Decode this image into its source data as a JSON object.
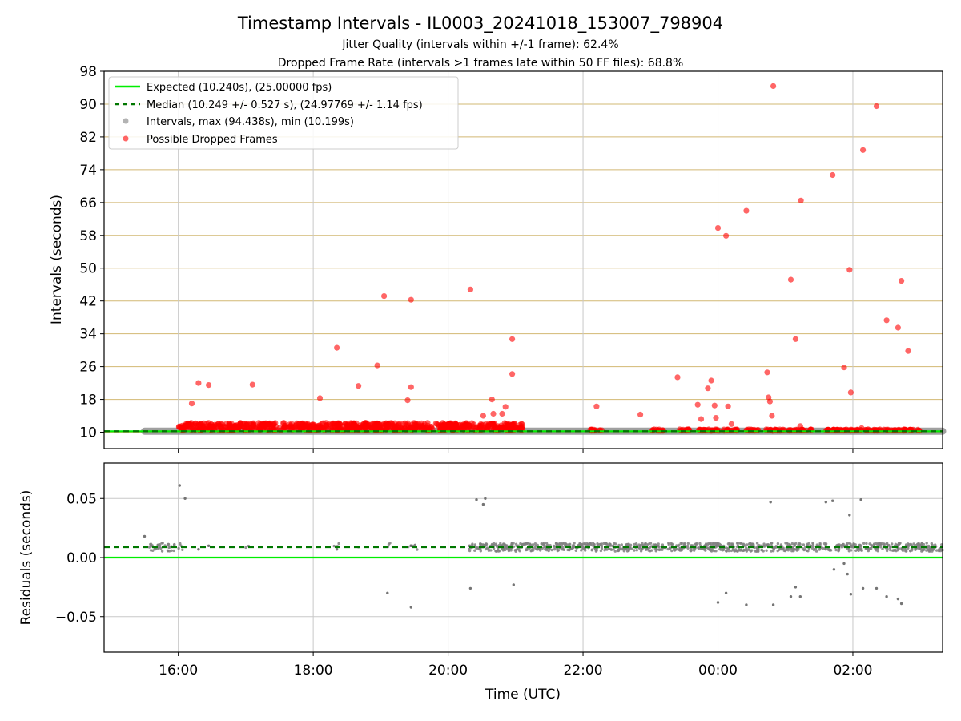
{
  "title": "Timestamp Intervals - IL0003_20241018_153007_798904",
  "subtitle_1": "Jitter Quality (intervals within +/-1 frame): 62.4%",
  "subtitle_2": "Dropped Frame Rate (intervals >1 frames late within 50 FF files): 68.8%",
  "colors": {
    "expected": "#00ee00",
    "median": "#007700",
    "intervals": "#808080",
    "dropped": "#ff0000",
    "hgrid_top": "#d2b873",
    "grid": "#c8c8c8"
  },
  "chart_data": [
    {
      "type": "scatter",
      "ylabel": "Intervals (seconds)",
      "ylim": [
        6,
        98
      ],
      "y_ticks": [
        "10",
        "18",
        "26",
        "34",
        "42",
        "50",
        "58",
        "66",
        "74",
        "82",
        "90",
        "98"
      ],
      "xlim_hours": [
        14.9,
        27.33
      ],
      "x_ticks": [
        "16:00",
        "18:00",
        "20:00",
        "22:00",
        "00:00",
        "02:00"
      ],
      "grid": true,
      "legend_position": "top-left",
      "legend": [
        "Expected (10.240s), (25.00000 fps)",
        "Median (10.249 +/- 0.527 s), (24.97769 +/- 1.14 fps)",
        "Intervals, max (94.438s), min (10.199s)",
        "Possible Dropped Frames"
      ],
      "expected": 10.24,
      "median": 10.249,
      "intervals_range_hours": [
        15.5,
        27.33
      ],
      "dropped_band": {
        "y": 10.8,
        "segments": [
          [
            16.0,
            20.4
          ],
          [
            20.4,
            21.1
          ],
          [
            22.1,
            22.3
          ],
          [
            23.0,
            23.2
          ],
          [
            23.4,
            23.6
          ],
          [
            23.7,
            24.3
          ],
          [
            24.4,
            24.6
          ],
          [
            24.7,
            25.0
          ],
          [
            25.05,
            25.4
          ],
          [
            25.6,
            27.0
          ]
        ]
      },
      "dropped_outliers": [
        [
          16.2,
          17
        ],
        [
          16.3,
          22
        ],
        [
          16.45,
          21.5
        ],
        [
          17.1,
          21.6
        ],
        [
          18.1,
          18.3
        ],
        [
          18.35,
          30.6
        ],
        [
          18.67,
          21.3
        ],
        [
          19.05,
          43.2
        ],
        [
          18.95,
          26.3
        ],
        [
          19.4,
          17.8
        ],
        [
          19.45,
          42.3
        ],
        [
          19.45,
          21
        ],
        [
          20.33,
          44.8
        ],
        [
          20.52,
          14
        ],
        [
          20.65,
          18
        ],
        [
          20.67,
          14.5
        ],
        [
          20.8,
          14.5
        ],
        [
          20.85,
          16.2
        ],
        [
          20.87,
          12
        ],
        [
          20.95,
          32.7
        ],
        [
          20.95,
          24.2
        ],
        [
          22.2,
          16.3
        ],
        [
          22.85,
          14.3
        ],
        [
          23.4,
          23.4
        ],
        [
          23.7,
          16.7
        ],
        [
          23.75,
          13.2
        ],
        [
          23.85,
          20.7
        ],
        [
          23.9,
          22.6
        ],
        [
          23.95,
          16.5
        ],
        [
          23.97,
          13.5
        ],
        [
          24.15,
          16.3
        ],
        [
          24.2,
          12
        ],
        [
          24.0,
          59.8
        ],
        [
          24.12,
          57.9
        ],
        [
          24.42,
          64
        ],
        [
          24.73,
          24.6
        ],
        [
          24.75,
          18.5
        ],
        [
          24.77,
          17.5
        ],
        [
          24.8,
          14
        ],
        [
          24.82,
          94.4
        ],
        [
          25.08,
          47.2
        ],
        [
          25.15,
          32.7
        ],
        [
          25.22,
          11.5
        ],
        [
          25.23,
          66.5
        ],
        [
          25.7,
          72.7
        ],
        [
          25.87,
          25.8
        ],
        [
          25.95,
          49.6
        ],
        [
          25.97,
          19.7
        ],
        [
          26.13,
          11
        ],
        [
          26.15,
          78.8
        ],
        [
          26.35,
          89.5
        ],
        [
          26.5,
          37.3
        ],
        [
          26.67,
          35.5
        ],
        [
          26.72,
          46.9
        ],
        [
          26.82,
          29.8
        ]
      ]
    },
    {
      "type": "scatter",
      "xlabel": "Time (UTC)",
      "ylabel": "Residuals (seconds)",
      "ylim": [
        -0.08,
        0.08
      ],
      "y_ticks": [
        "0.05",
        "0.00",
        "−0.05"
      ],
      "y_tick_values": [
        0.05,
        0.0,
        -0.05
      ],
      "x_ticks": [
        "16:00",
        "18:00",
        "20:00",
        "22:00",
        "00:00",
        "02:00"
      ],
      "zero_line": 0.0,
      "median_offset": 0.0088,
      "residual_outliers": [
        [
          15.5,
          0.018
        ],
        [
          16.02,
          0.061
        ],
        [
          16.1,
          0.05
        ],
        [
          16.3,
          0.007
        ],
        [
          16.45,
          0.01
        ],
        [
          18.35,
          0.007
        ],
        [
          18.67,
          0.009
        ],
        [
          19.1,
          -0.03
        ],
        [
          19.45,
          -0.042
        ],
        [
          19.45,
          0.01
        ],
        [
          20.33,
          -0.026
        ],
        [
          20.42,
          0.049
        ],
        [
          20.52,
          0.045
        ],
        [
          20.55,
          0.05
        ],
        [
          20.97,
          -0.023
        ],
        [
          24.0,
          -0.038
        ],
        [
          24.12,
          -0.03
        ],
        [
          24.42,
          -0.04
        ],
        [
          24.78,
          0.047
        ],
        [
          24.82,
          -0.04
        ],
        [
          25.08,
          -0.033
        ],
        [
          25.15,
          -0.025
        ],
        [
          25.22,
          -0.033
        ],
        [
          25.6,
          0.047
        ],
        [
          25.7,
          0.048
        ],
        [
          25.72,
          -0.01
        ],
        [
          25.87,
          -0.005
        ],
        [
          25.92,
          -0.014
        ],
        [
          25.95,
          0.036
        ],
        [
          25.97,
          -0.031
        ],
        [
          26.12,
          0.049
        ],
        [
          26.15,
          -0.026
        ],
        [
          26.35,
          -0.026
        ],
        [
          26.5,
          -0.033
        ],
        [
          26.67,
          -0.035
        ],
        [
          26.72,
          -0.039
        ]
      ]
    }
  ]
}
